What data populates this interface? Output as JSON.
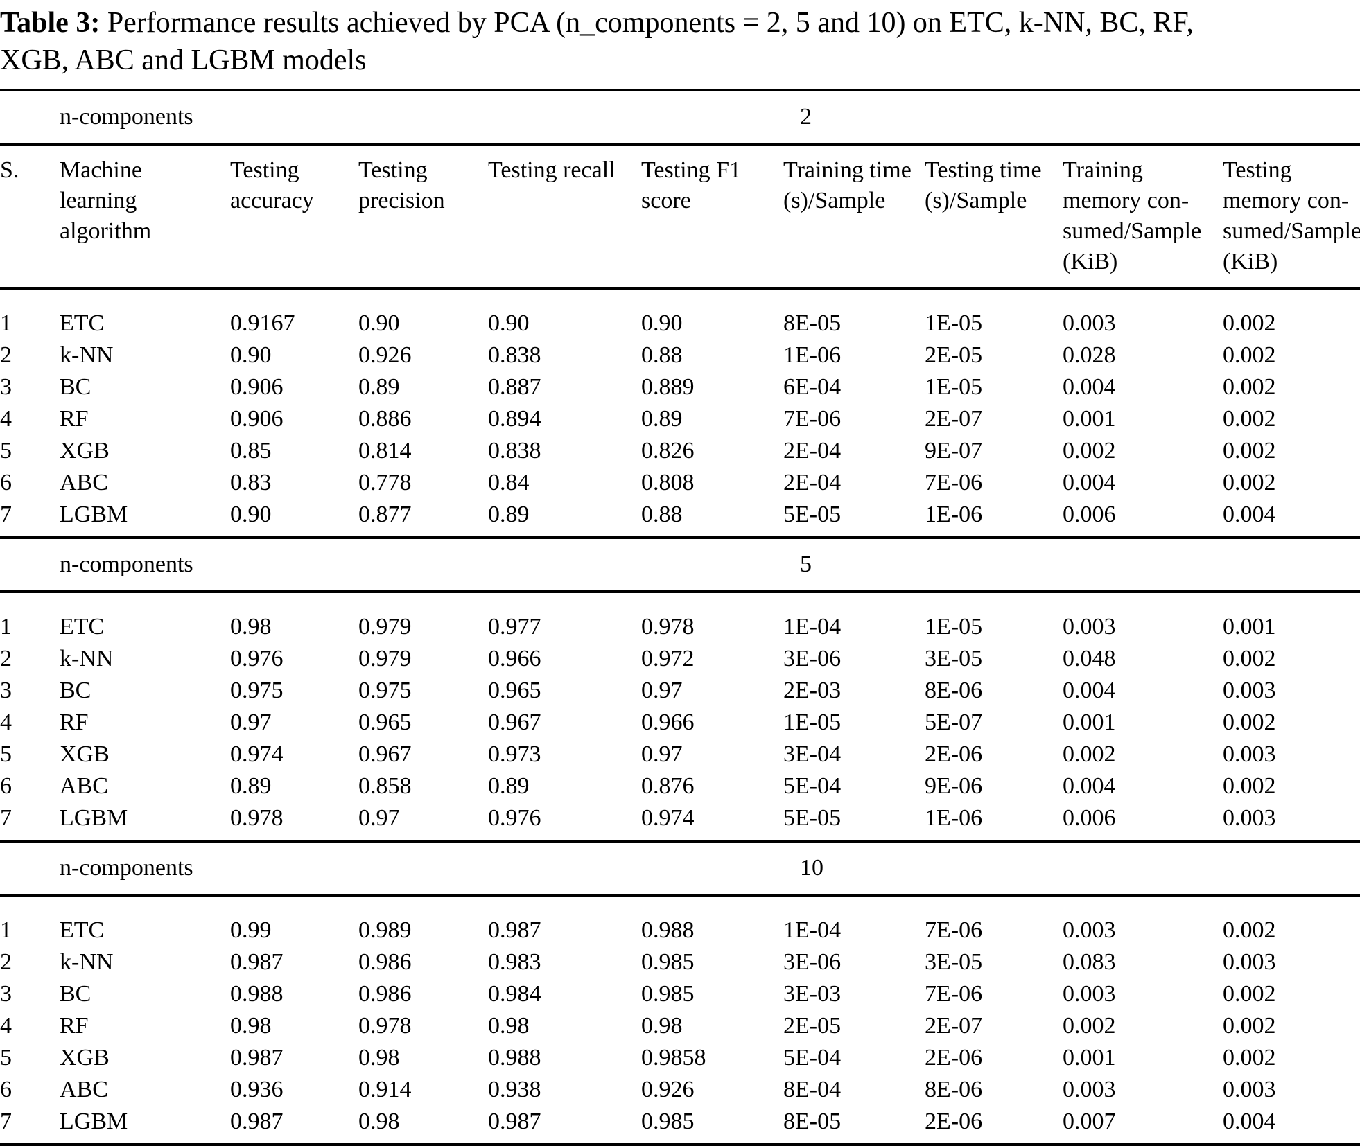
{
  "colors": {
    "text": "#000000",
    "background": "#ffffff",
    "rule": "#000000"
  },
  "title": {
    "label": "Table 3:",
    "text": " Performance results achieved by PCA (n_components = 2, 5 and 10) on ETC, k-NN, BC, RF,\nXGB, ABC and LGBM models"
  },
  "table": {
    "group_header_label": "n-components",
    "columns": [
      "S.",
      "Machine\nlearning\nalgorithm",
      "Testing\naccuracy",
      "Testing\nprecision",
      "Testing recall",
      "Testing F1\nscore",
      "Training time\n(s)/Sample",
      "Testing time\n(s)/Sample",
      "Training\nmemory con-\nsumed/Sample\n(KiB)",
      "Testing\nmemory con-\nsumed/Sample\n(KiB)"
    ],
    "sections": [
      {
        "n_components": "2",
        "rows": [
          [
            "1",
            "ETC",
            "0.9167",
            "0.90",
            "0.90",
            "0.90",
            "8E-05",
            "1E-05",
            "0.003",
            "0.002"
          ],
          [
            "2",
            "k-NN",
            "0.90",
            "0.926",
            "0.838",
            "0.88",
            "1E-06",
            "2E-05",
            "0.028",
            "0.002"
          ],
          [
            "3",
            "BC",
            "0.906",
            "0.89",
            "0.887",
            "0.889",
            "6E-04",
            "1E-05",
            "0.004",
            "0.002"
          ],
          [
            "4",
            "RF",
            "0.906",
            "0.886",
            "0.894",
            "0.89",
            "7E-06",
            "2E-07",
            "0.001",
            "0.002"
          ],
          [
            "5",
            "XGB",
            "0.85",
            "0.814",
            "0.838",
            "0.826",
            "2E-04",
            "9E-07",
            "0.002",
            "0.002"
          ],
          [
            "6",
            "ABC",
            "0.83",
            "0.778",
            "0.84",
            "0.808",
            "2E-04",
            "7E-06",
            "0.004",
            "0.002"
          ],
          [
            "7",
            "LGBM",
            "0.90",
            "0.877",
            "0.89",
            "0.88",
            "5E-05",
            "1E-06",
            "0.006",
            "0.004"
          ]
        ]
      },
      {
        "n_components": "5",
        "rows": [
          [
            "1",
            "ETC",
            "0.98",
            "0.979",
            "0.977",
            "0.978",
            "1E-04",
            "1E-05",
            "0.003",
            "0.001"
          ],
          [
            "2",
            "k-NN",
            "0.976",
            "0.979",
            "0.966",
            "0.972",
            "3E-06",
            "3E-05",
            "0.048",
            "0.002"
          ],
          [
            "3",
            "BC",
            "0.975",
            "0.975",
            "0.965",
            "0.97",
            "2E-03",
            "8E-06",
            "0.004",
            "0.003"
          ],
          [
            "4",
            "RF",
            "0.97",
            "0.965",
            "0.967",
            "0.966",
            "1E-05",
            "5E-07",
            "0.001",
            "0.002"
          ],
          [
            "5",
            "XGB",
            "0.974",
            "0.967",
            "0.973",
            "0.97",
            "3E-04",
            "2E-06",
            "0.002",
            "0.003"
          ],
          [
            "6",
            "ABC",
            "0.89",
            "0.858",
            "0.89",
            "0.876",
            "5E-04",
            "9E-06",
            "0.004",
            "0.002"
          ],
          [
            "7",
            "LGBM",
            "0.978",
            "0.97",
            "0.976",
            "0.974",
            "5E-05",
            "1E-06",
            "0.006",
            "0.003"
          ]
        ]
      },
      {
        "n_components": "10",
        "rows": [
          [
            "1",
            "ETC",
            "0.99",
            "0.989",
            "0.987",
            "0.988",
            "1E-04",
            "7E-06",
            "0.003",
            "0.002"
          ],
          [
            "2",
            "k-NN",
            "0.987",
            "0.986",
            "0.983",
            "0.985",
            "3E-06",
            "3E-05",
            "0.083",
            "0.003"
          ],
          [
            "3",
            "BC",
            "0.988",
            "0.986",
            "0.984",
            "0.985",
            "3E-03",
            "7E-06",
            "0.003",
            "0.002"
          ],
          [
            "4",
            "RF",
            "0.98",
            "0.978",
            "0.98",
            "0.98",
            "2E-05",
            "2E-07",
            "0.002",
            "0.002"
          ],
          [
            "5",
            "XGB",
            "0.987",
            "0.98",
            "0.988",
            "0.9858",
            "5E-04",
            "2E-06",
            "0.001",
            "0.002"
          ],
          [
            "6",
            "ABC",
            "0.936",
            "0.914",
            "0.938",
            "0.926",
            "8E-04",
            "8E-06",
            "0.003",
            "0.003"
          ],
          [
            "7",
            "LGBM",
            "0.987",
            "0.98",
            "0.987",
            "0.985",
            "8E-05",
            "2E-06",
            "0.007",
            "0.004"
          ]
        ]
      }
    ]
  }
}
